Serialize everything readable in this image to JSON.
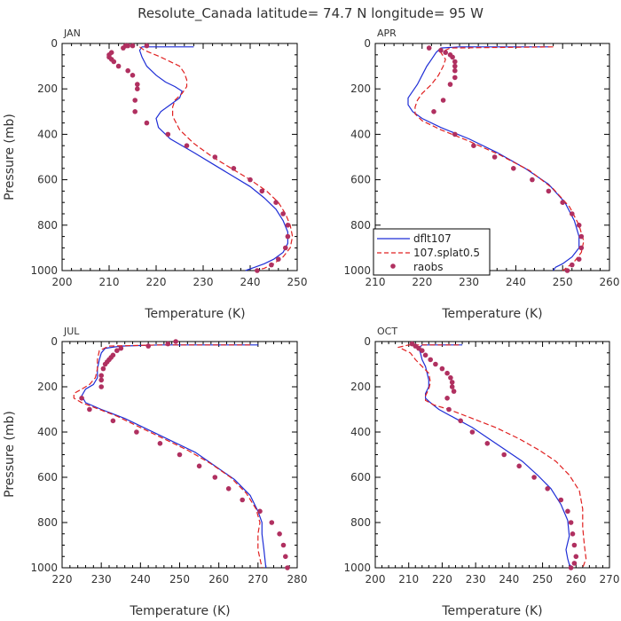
{
  "title": "Resolute_Canada  latitude= 74.7 N longitude= 95 W",
  "colors": {
    "dflt": "#1f2ed6",
    "splat": "#e02020",
    "raobs": "#b03060"
  },
  "legend": {
    "items": [
      {
        "label": "dflt107",
        "style": "solid"
      },
      {
        "label": "107.splat0.5",
        "style": "dashed"
      },
      {
        "label": "raobs",
        "style": "dots"
      }
    ]
  },
  "chart_data": [
    {
      "type": "line",
      "month": "JAN",
      "xlabel": "Temperature (K)",
      "ylabel": "Pressure (mb)",
      "xlim": [
        200,
        250
      ],
      "ylim": [
        1000,
        0
      ],
      "xticks": [
        200,
        210,
        220,
        230,
        240,
        250
      ],
      "yticks": [
        0,
        200,
        400,
        600,
        800,
        1000
      ],
      "series": [
        {
          "name": "dflt107",
          "temp": [
            228,
            217,
            216.5,
            217,
            218,
            220,
            222,
            224,
            225.5,
            225,
            223,
            221,
            220,
            220.5,
            223,
            228,
            232,
            236,
            240,
            243,
            245.5,
            247,
            248,
            248,
            247,
            245,
            243,
            241,
            239
          ],
          "pres": [
            15,
            15,
            30,
            60,
            100,
            140,
            170,
            190,
            210,
            240,
            270,
            300,
            330,
            370,
            420,
            480,
            530,
            580,
            630,
            680,
            730,
            780,
            830,
            880,
            920,
            950,
            970,
            985,
            1000
          ]
        },
        {
          "name": "107.splat0.5",
          "temp": [
            216.5,
            217.5,
            221,
            225,
            226,
            226.5,
            226.5,
            225.5,
            224,
            223.5,
            223.5,
            225,
            228,
            232,
            236,
            240,
            243.5,
            246,
            247.5,
            248.5,
            249,
            248.5,
            247,
            245,
            243,
            241
          ],
          "pres": [
            15,
            30,
            60,
            100,
            130,
            160,
            190,
            220,
            250,
            280,
            320,
            380,
            440,
            500,
            550,
            600,
            650,
            700,
            750,
            800,
            850,
            900,
            940,
            970,
            990,
            1000
          ]
        }
      ],
      "raobs": {
        "temp": [
          214,
          213,
          213.5,
          215,
          218,
          210.5,
          210,
          210,
          210.5,
          211,
          212,
          214,
          215,
          216,
          216,
          215.5,
          215.5,
          218,
          222.5,
          226.5,
          232.5,
          236.5,
          240,
          242.5,
          245.5,
          247,
          248,
          248,
          247.5,
          246,
          244.5,
          241.5
        ],
        "pres": [
          10,
          20,
          10,
          10,
          10,
          40,
          50,
          60,
          70,
          80,
          100,
          120,
          140,
          180,
          200,
          250,
          300,
          350,
          400,
          450,
          500,
          550,
          600,
          650,
          700,
          750,
          800,
          850,
          900,
          950,
          975,
          1000
        ]
      }
    },
    {
      "type": "line",
      "month": "APR",
      "xlabel": "Temperature (K)",
      "ylabel": "Pressure (mb)",
      "xlim": [
        210,
        260
      ],
      "ylim": [
        1000,
        0
      ],
      "xticks": [
        210,
        220,
        230,
        240,
        250,
        260
      ],
      "yticks": [
        0,
        200,
        400,
        600,
        800,
        1000
      ],
      "series": [
        {
          "name": "dflt107",
          "temp": [
            247,
            228,
            224,
            223,
            222,
            221,
            220,
            219,
            218,
            217,
            217,
            218,
            220,
            224,
            230,
            236,
            242,
            247,
            250.5,
            252.5,
            253.5,
            253.5,
            252,
            250,
            248.5,
            248
          ],
          "pres": [
            15,
            15,
            20,
            40,
            70,
            100,
            140,
            180,
            210,
            240,
            270,
            300,
            330,
            370,
            420,
            480,
            550,
            620,
            700,
            780,
            850,
            900,
            940,
            970,
            985,
            1000
          ]
        },
        {
          "name": "107.splat0.5",
          "temp": [
            248,
            226,
            224,
            225,
            224.5,
            223.5,
            222,
            220,
            219,
            218.5,
            218.5,
            220,
            224,
            230,
            236.5,
            243,
            248,
            251.5,
            253.5,
            254.5,
            254,
            252.5,
            251,
            250
          ],
          "pres": [
            15,
            20,
            40,
            70,
            100,
            140,
            180,
            220,
            250,
            280,
            310,
            340,
            380,
            430,
            490,
            560,
            640,
            720,
            800,
            870,
            920,
            960,
            985,
            1000
          ]
        }
      ],
      "raobs": {
        "temp": [
          221.5,
          224,
          225,
          226,
          226.5,
          227,
          227,
          227,
          227,
          226,
          224.5,
          222.5,
          227,
          231,
          235.5,
          239.5,
          243.5,
          247,
          250,
          252,
          253.5,
          254,
          254,
          253.5,
          252,
          251
        ],
        "pres": [
          20,
          30,
          40,
          50,
          60,
          80,
          100,
          120,
          150,
          180,
          250,
          300,
          400,
          450,
          500,
          550,
          600,
          650,
          700,
          750,
          800,
          850,
          900,
          950,
          975,
          1000
        ]
      }
    },
    {
      "type": "line",
      "month": "JUL",
      "xlabel": "Temperature (K)",
      "ylabel": "Pressure (mb)",
      "xlim": [
        220,
        280
      ],
      "ylim": [
        1000,
        0
      ],
      "xticks": [
        220,
        230,
        240,
        250,
        260,
        270,
        280
      ],
      "yticks": [
        0,
        200,
        400,
        600,
        800,
        1000
      ],
      "series": [
        {
          "name": "dflt107",
          "temp": [
            270,
            245,
            235,
            231,
            230,
            229.5,
            229,
            229,
            228,
            226,
            225,
            226,
            230,
            236,
            242,
            248,
            254,
            259,
            264,
            268,
            270,
            271,
            271,
            271.5,
            272
          ],
          "pres": [
            15,
            15,
            20,
            30,
            50,
            80,
            120,
            160,
            190,
            210,
            240,
            270,
            300,
            340,
            390,
            440,
            490,
            550,
            610,
            680,
            750,
            800,
            850,
            920,
            1000
          ]
        },
        {
          "name": "107.splat0.5",
          "temp": [
            268,
            245,
            232,
            229.5,
            229,
            229,
            228.5,
            227,
            225,
            223,
            223,
            225,
            228,
            234,
            240,
            246,
            252,
            258,
            263,
            267,
            269.5,
            270.5,
            270,
            270,
            271
          ],
          "pres": [
            15,
            15,
            20,
            40,
            80,
            120,
            160,
            190,
            210,
            230,
            250,
            270,
            290,
            330,
            380,
            430,
            480,
            540,
            600,
            670,
            740,
            800,
            850,
            920,
            1000
          ]
        }
      ],
      "raobs": {
        "temp": [
          249,
          247,
          242,
          235,
          234,
          233,
          232.5,
          232,
          231.5,
          231,
          230.5,
          230,
          230,
          230,
          225,
          227,
          233,
          239,
          245,
          250,
          255,
          259,
          262.5,
          266,
          270.5,
          273.5,
          275.5,
          276.5,
          277,
          277.5
        ],
        "pres": [
          0,
          10,
          20,
          30,
          40,
          60,
          70,
          80,
          90,
          100,
          120,
          150,
          170,
          200,
          250,
          300,
          350,
          400,
          450,
          500,
          550,
          600,
          650,
          700,
          750,
          800,
          850,
          900,
          950,
          1000
        ]
      }
    },
    {
      "type": "line",
      "month": "OCT",
      "xlabel": "Temperature (K)",
      "ylabel": "Pressure (mb)",
      "xlim": [
        200,
        270
      ],
      "ylim": [
        1000,
        0
      ],
      "xticks": [
        200,
        210,
        220,
        230,
        240,
        250,
        260,
        270
      ],
      "yticks": [
        0,
        200,
        400,
        600,
        800,
        1000
      ],
      "series": [
        {
          "name": "dflt107",
          "temp": [
            226,
            214,
            213,
            213.5,
            214,
            215,
            215.5,
            216,
            216,
            215,
            215,
            216.5,
            219,
            224,
            229,
            234,
            239,
            244,
            248.5,
            252.5,
            255.5,
            257.5,
            258,
            257,
            257.5,
            258,
            259
          ],
          "pres": [
            15,
            15,
            30,
            50,
            80,
            110,
            140,
            170,
            200,
            230,
            250,
            270,
            300,
            340,
            380,
            430,
            480,
            530,
            590,
            650,
            720,
            790,
            860,
            920,
            960,
            985,
            1000
          ]
        },
        {
          "name": "107.splat0.5",
          "temp": [
            225,
            210,
            207,
            210.5,
            212,
            214,
            216,
            216.5,
            216,
            215,
            215,
            217.5,
            222,
            229,
            236,
            243,
            249,
            254,
            258,
            261,
            262,
            262,
            262.5,
            263,
            262
          ],
          "pres": [
            15,
            15,
            25,
            50,
            80,
            110,
            140,
            180,
            210,
            240,
            260,
            280,
            300,
            340,
            380,
            430,
            480,
            530,
            590,
            660,
            740,
            820,
            900,
            960,
            1000
          ]
        }
      ],
      "raobs": {
        "temp": [
          211,
          212,
          213,
          214,
          215,
          216.5,
          218,
          220,
          221.5,
          222.5,
          223,
          223,
          223.5,
          221.5,
          222,
          225.5,
          229,
          233.5,
          238.5,
          243,
          247.5,
          251.5,
          255.5,
          257.5,
          258.5,
          259,
          259.5,
          260,
          259.5,
          258.5
        ],
        "pres": [
          10,
          20,
          30,
          40,
          60,
          80,
          100,
          120,
          140,
          160,
          180,
          200,
          220,
          250,
          300,
          350,
          400,
          450,
          500,
          550,
          600,
          650,
          700,
          750,
          800,
          850,
          900,
          950,
          980,
          1000
        ]
      }
    }
  ]
}
